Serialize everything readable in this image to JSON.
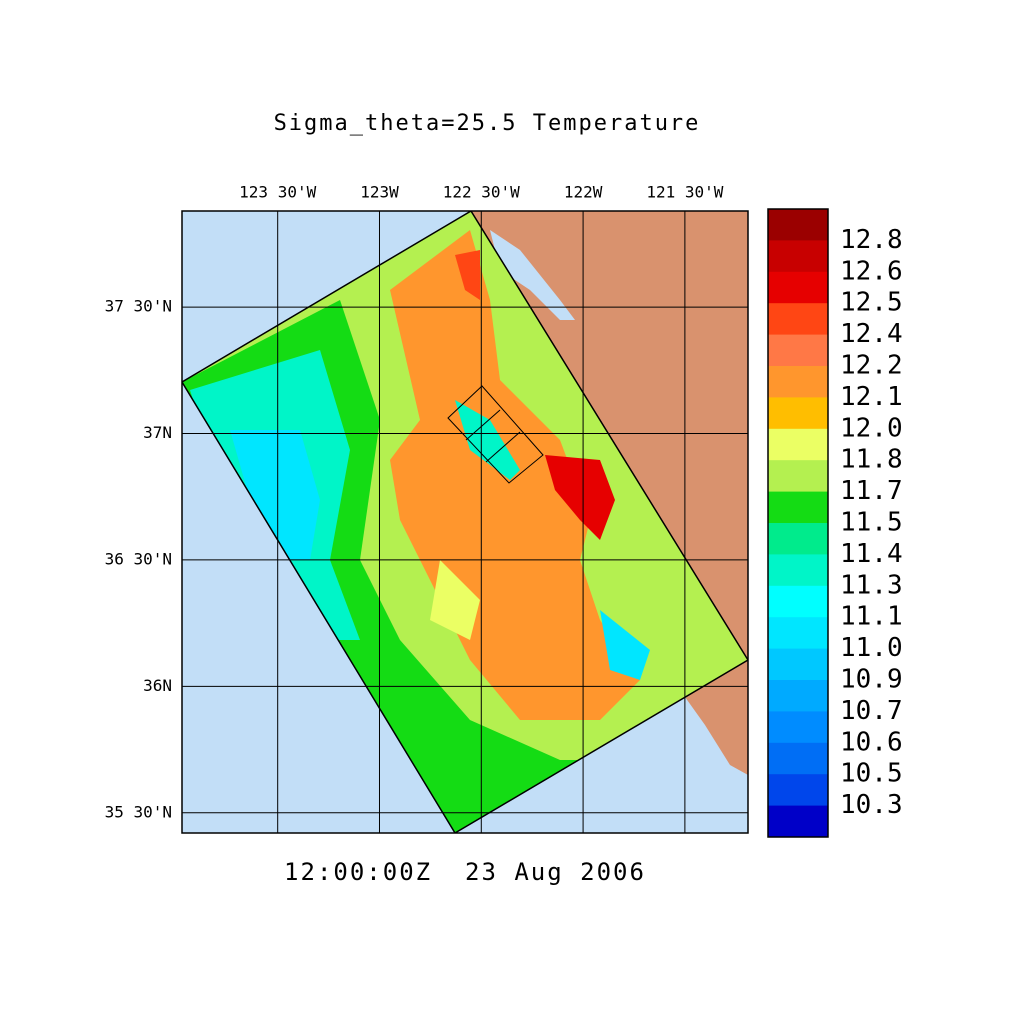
{
  "chart_data": {
    "type": "map",
    "title": "Sigma_theta=25.5 Temperature",
    "time_label": "12:00:00Z  23 Aug 2006",
    "xlim": [
      -123.97,
      -121.19
    ],
    "ylim": [
      35.42,
      37.88
    ],
    "xticks": [
      {
        "value": -123.5,
        "label": "123 30'W"
      },
      {
        "value": -123,
        "label": "123W"
      },
      {
        "value": -122.5,
        "label": "122 30'W"
      },
      {
        "value": -122,
        "label": "122W"
      },
      {
        "value": -121.5,
        "label": "121 30'W"
      }
    ],
    "yticks": [
      {
        "value": 37.5,
        "label": "37 30'N"
      },
      {
        "value": 37,
        "label": "37N"
      },
      {
        "value": 36.5,
        "label": "36 30'N"
      },
      {
        "value": 36,
        "label": "36N"
      },
      {
        "value": 35.5,
        "label": "35 30'N"
      }
    ],
    "grid": true,
    "colorbar": {
      "colors": [
        "#9b0000",
        "#c80000",
        "#e60000",
        "#ff4614",
        "#ff7846",
        "#ff962d",
        "#ffbe00",
        "#ebff64",
        "#b4f050",
        "#14dc14",
        "#00eb8c",
        "#00f5c8",
        "#00ffff",
        "#00e6ff",
        "#00c8ff",
        "#00aaff",
        "#008cff",
        "#006ef5",
        "#0046eb",
        "#0000c8"
      ],
      "levels": [
        12.8,
        12.6,
        12.5,
        12.4,
        12.2,
        12.1,
        {
          "value": 12,
          "label": "12.0"
        },
        11.8,
        11.7,
        11.5,
        11.4,
        11.3,
        11.1,
        {
          "value": 11,
          "label": "11.0"
        },
        10.9,
        10.7,
        10.6,
        10.5,
        10.3
      ]
    }
  }
}
